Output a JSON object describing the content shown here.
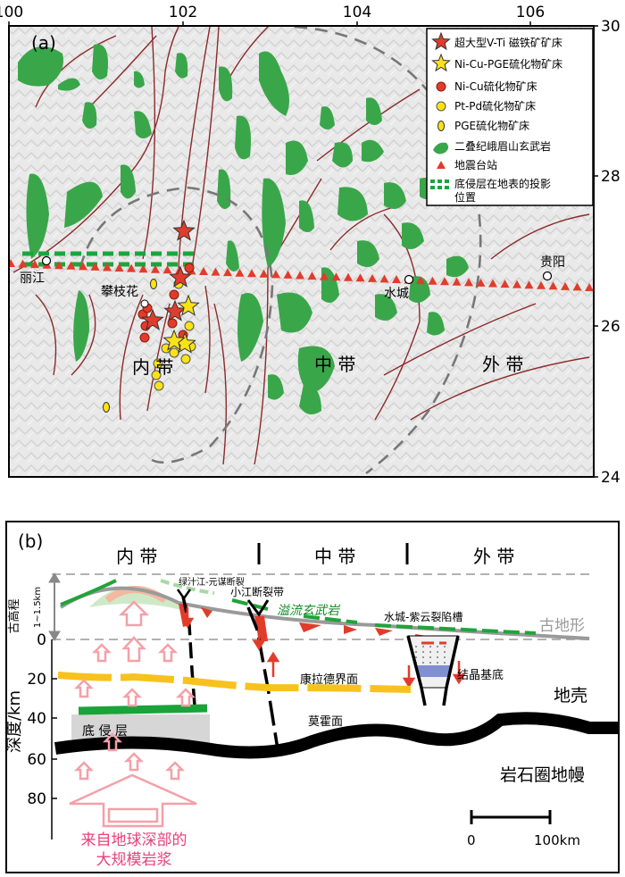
{
  "panel_a": {
    "label": "(a)",
    "x_ticks": [
      "100",
      "102",
      "104",
      "106"
    ],
    "y_ticks": [
      "30",
      "28",
      "26",
      "24"
    ],
    "zones": [
      "内 带",
      "中 带",
      "外 带"
    ],
    "cities": [
      "丽江",
      "攀枝花",
      "水城",
      "贵阳"
    ],
    "legend": [
      {
        "icon": "red-star",
        "label": "超大型V-Ti 磁铁矿矿床"
      },
      {
        "icon": "yellow-star",
        "label": "Ni-Cu-PGE硫化物矿床"
      },
      {
        "icon": "red-dot",
        "label": "Ni-Cu硫化物矿床"
      },
      {
        "icon": "yellow-dot",
        "label": "Pt-Pd硫化物矿床"
      },
      {
        "icon": "yellow-oval",
        "label": "PGE硫化物矿床"
      },
      {
        "icon": "green-basalt",
        "label": "二叠纪峨眉山玄武岩"
      },
      {
        "icon": "red-triangle",
        "label": "地震台站"
      },
      {
        "icon": "green-dash",
        "label_line1": "底侵层在地表的投影",
        "label_line2": "位置"
      }
    ]
  },
  "panel_b": {
    "label": "(b)",
    "zones": [
      "内 带",
      "中 带",
      "外 带"
    ],
    "y_axis_label": "深度/km",
    "y_ticks": [
      "0",
      "20",
      "40",
      "60",
      "80"
    ],
    "paleo_label": "古高程",
    "paleo_range": "1~1.5km",
    "labels": {
      "fault1": "绿汁江-元谋断裂",
      "fault2": "小江断裂带",
      "basalt": "溢流玄武岩",
      "rift": "水城-紫云裂陷槽",
      "paleo_surface": "古地形",
      "conrad": "康拉德界面",
      "basement": "结晶基底",
      "crust": "地壳",
      "moho": "莫霍面",
      "underplate": "底   侵   层",
      "mantle": "岩石圈地幔",
      "magma_line1": "来自地球深部的",
      "magma_line2": "大规模岩浆"
    },
    "scale_0": "0",
    "scale_100": "100km"
  }
}
